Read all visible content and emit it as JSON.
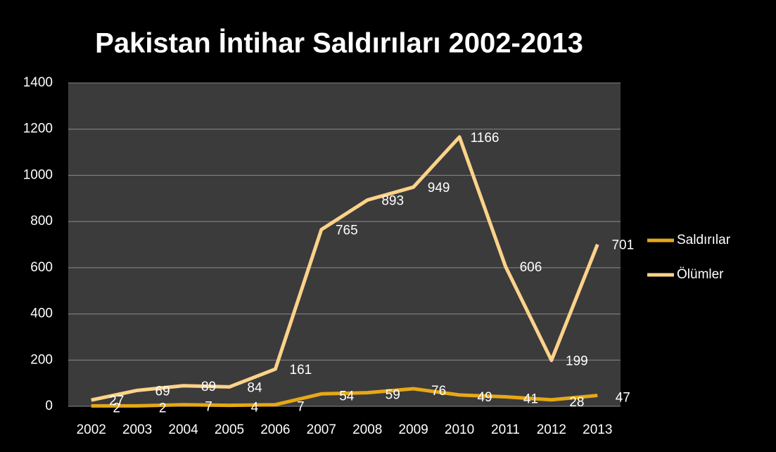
{
  "chart_data": {
    "type": "line",
    "title": "Pakistan İntihar Saldırıları 2002-2013",
    "categories": [
      "2002",
      "2003",
      "2004",
      "2005",
      "2006",
      "2007",
      "2008",
      "2009",
      "2010",
      "2011",
      "2012",
      "2013"
    ],
    "series": [
      {
        "name": "Saldırılar",
        "color": "#e6a817",
        "values": [
          2,
          2,
          7,
          4,
          7,
          54,
          59,
          76,
          49,
          41,
          28,
          47
        ]
      },
      {
        "name": "Ölümler",
        "color": "#fdd28a",
        "values": [
          27,
          69,
          89,
          84,
          161,
          765,
          893,
          949,
          1166,
          606,
          199,
          701
        ]
      }
    ],
    "ylim": [
      0,
      1400
    ],
    "yticks": [
      0,
      200,
      400,
      600,
      800,
      1000,
      1200,
      1400
    ],
    "grid": true,
    "legend": "right"
  }
}
